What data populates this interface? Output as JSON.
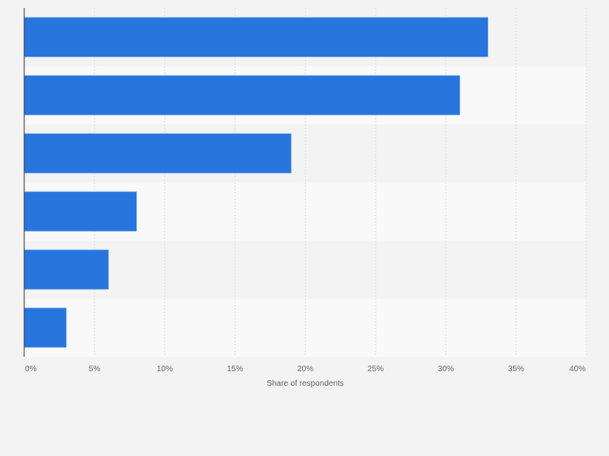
{
  "chart_data": {
    "type": "bar",
    "orientation": "horizontal",
    "title": "",
    "xlabel": "Share of respondents",
    "ylabel": "",
    "categories": [
      "",
      "",
      "",
      "",
      "",
      ""
    ],
    "values": [
      33,
      31,
      19,
      8,
      6,
      3
    ],
    "value_unit": "%",
    "xlim": [
      0,
      40
    ],
    "xticks": [
      0,
      5,
      10,
      15,
      20,
      25,
      30,
      35,
      40
    ],
    "xtick_labels": [
      "0%",
      "5%",
      "10%",
      "15%",
      "20%",
      "25%",
      "30%",
      "35%",
      "40%"
    ],
    "grid": true,
    "legend": "none",
    "bar_color": "#2876dd",
    "band_colors": [
      "#f3f3f3",
      "#f9f9f9"
    ],
    "grid_color": "#dcdcdc",
    "axis_color": "#333333",
    "text_color": "#666666"
  }
}
